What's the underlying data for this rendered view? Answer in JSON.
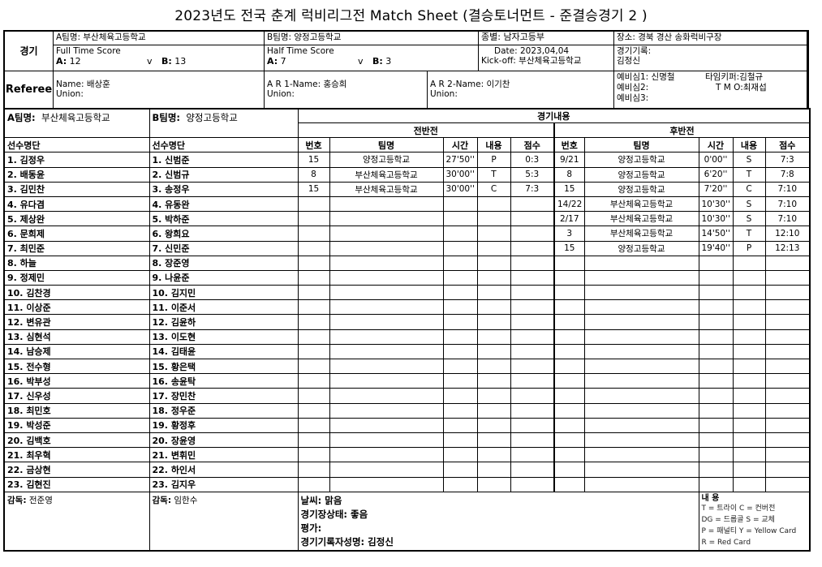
{
  "title": "2023년도 전국 춘계 럭비리그전  Match Sheet (결승토너먼트 - 준결승경기 2 )",
  "match": {
    "label": "경기",
    "team_a": "A팀명:  부산체육고등학교",
    "team_b": "B팀명:  양정고등학교",
    "division": "종별:  남자고등부",
    "venue": "장소:  경북 경산 송화럭비구장",
    "full_time_label": "Full Time Score",
    "full_a_label": "A:",
    "full_a": "12",
    "full_b_label": "B:",
    "full_b": "13",
    "v": "v",
    "half_time_label": "Half Time Score",
    "half_a_label": "A:",
    "half_a": "7",
    "half_b_label": "B:",
    "half_b": "3",
    "date": "Date: 2023,04,04",
    "kickoff": "Kick-off: 부산체육고등학교",
    "recorder_label": "경기기록:",
    "recorder": "김정신"
  },
  "referee": {
    "label": "Referee",
    "name": "Name:  배상훈",
    "union": "Union:",
    "ar1": "A R 1-Name:  홍승희",
    "ar1_union": "Union:",
    "ar2": "A R 2-Name:  이기찬",
    "ar2_union": "Union:",
    "reserve1": "예비심1: 신명철",
    "reserve2": "예비심2:",
    "reserve3": "예비심3:",
    "timekeeper": "타임키퍼:김철규",
    "tmo": "T M O:최재섭"
  },
  "teams": {
    "a_label": "A팀명:",
    "a_name": "부산체육고등학교",
    "b_label": "B팀명:",
    "b_name": "양정고등학교",
    "roster_label": "선수명단",
    "a_players": [
      "1. 김정우",
      "2. 배동윤",
      "3. 김민찬",
      "4. 유다겸",
      "5. 제상완",
      "6. 문희제",
      "7. 최민준",
      "8. 하늘",
      "9. 정제민",
      "10. 김찬경",
      "11. 이상준",
      "12. 변유관",
      "13. 심현석",
      "14. 남승제",
      "15. 전수형",
      "16. 박부성",
      "17. 신우성",
      "18. 최민호",
      "19. 박성준",
      "20. 김백호",
      "21. 최우혁",
      "22. 금상현",
      "23. 김현진"
    ],
    "b_players": [
      "1. 신범준",
      "2. 신범규",
      "3. 송정우",
      "4. 유동완",
      "5. 박하준",
      "6. 왕희요",
      "7. 신민준",
      "8. 장준영",
      "9. 나윤준",
      "10. 김지민",
      "11. 이준서",
      "12. 김윤하",
      "13. 이도현",
      "14. 김태윤",
      "15. 황은택",
      "16. 송윤탁",
      "17. 장민찬",
      "18. 정우준",
      "19. 황정후",
      "20. 장윤영",
      "21. 변휘민",
      "22. 하인서",
      "23. 김지우"
    ]
  },
  "events": {
    "label": "경기내용",
    "first_half": "전반전",
    "second_half": "후반전",
    "columns": [
      "번호",
      "팀명",
      "시간",
      "내용",
      "점수"
    ],
    "first": [
      [
        "15",
        "양정고등학교",
        "27'50''",
        "P",
        "0:3"
      ],
      [
        "8",
        "부산체육고등학교",
        "30'00''",
        "T",
        "5:3"
      ],
      [
        "15",
        "부산체육고등학교",
        "30'00''",
        "C",
        "7:3"
      ]
    ],
    "second": [
      [
        "9/21",
        "양정고등학교",
        "0'00''",
        "S",
        "7:3"
      ],
      [
        "8",
        "양정고등학교",
        "6'20''",
        "T",
        "7:8"
      ],
      [
        "15",
        "양정고등학교",
        "7'20''",
        "C",
        "7:10"
      ],
      [
        "14/22",
        "부산체육고등학교",
        "10'30''",
        "S",
        "7:10"
      ],
      [
        "2/17",
        "부산체육고등학교",
        "10'30''",
        "S",
        "7:10"
      ],
      [
        "3",
        "부산체육고등학교",
        "14'50''",
        "T",
        "12:10"
      ],
      [
        "15",
        "양정고등학교",
        "19'40''",
        "P",
        "12:13"
      ]
    ]
  },
  "footer": {
    "coach_a_label": "감독:",
    "coach_a": "전준영",
    "coach_b_label": "감독:",
    "coach_b": "임한수",
    "weather": "날씨: 맑음",
    "ground": "경기장상태:  좋음",
    "evaluation": "평가:",
    "recorder": "경기기록자성명:    김정신",
    "legend_title": "내  용",
    "legend": [
      "T = 트라이       C = 컨버전",
      "DG = 드롭골    S = 교체",
      "P = 패널티  Y = Yellow Card",
      "R = Red Card"
    ]
  }
}
